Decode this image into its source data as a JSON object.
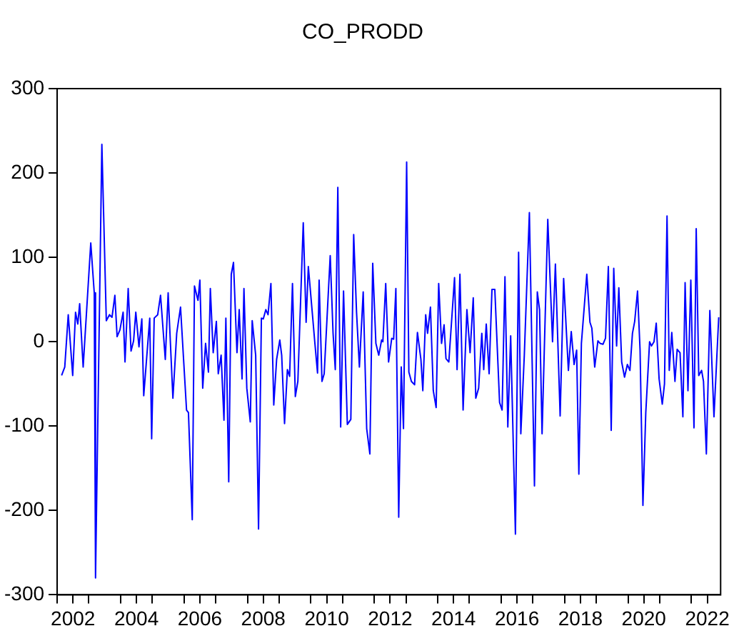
{
  "chart_data": {
    "type": "line",
    "title": "CO_PRODD",
    "color": "#0000ff",
    "marker": "none",
    "x": [
      2002.14,
      2002.24,
      2002.35,
      2002.49,
      2002.58,
      2002.65,
      2002.71,
      2002.82,
      2003.06,
      2003.17,
      2003.21,
      2003.41,
      2003.55,
      2003.65,
      2003.73,
      2003.82,
      2003.89,
      2003.98,
      2004.08,
      2004.14,
      2004.24,
      2004.33,
      2004.41,
      2004.48,
      2004.58,
      2004.67,
      2004.73,
      2004.92,
      2004.98,
      2005.06,
      2005.17,
      2005.26,
      2005.41,
      2005.5,
      2005.65,
      2005.77,
      2005.89,
      2006.08,
      2006.14,
      2006.26,
      2006.33,
      2006.44,
      2006.5,
      2006.59,
      2006.68,
      2006.77,
      2006.83,
      2006.92,
      2007.02,
      2007.08,
      2007.17,
      2007.26,
      2007.32,
      2007.41,
      2007.49,
      2007.56,
      2007.67,
      2007.74,
      2007.83,
      2007.89,
      2007.98,
      2008.09,
      2008.15,
      2008.26,
      2008.35,
      2008.44,
      2008.5,
      2008.58,
      2008.65,
      2008.74,
      2008.83,
      2008.92,
      2009.02,
      2009.08,
      2009.17,
      2009.26,
      2009.33,
      2009.42,
      2009.51,
      2009.59,
      2009.76,
      2009.85,
      2009.92,
      2010.05,
      2010.12,
      2010.21,
      2010.26,
      2010.35,
      2010.42,
      2010.61,
      2010.7,
      2010.77,
      2010.85,
      2010.94,
      2011.03,
      2011.15,
      2011.26,
      2011.35,
      2011.44,
      2011.53,
      2011.65,
      2011.76,
      2011.86,
      2011.95,
      2012.05,
      2012.14,
      2012.23,
      2012.27,
      2012.36,
      2012.45,
      2012.55,
      2012.61,
      2012.68,
      2012.77,
      2012.85,
      2012.92,
      2013.02,
      2013.09,
      2013.17,
      2013.27,
      2013.36,
      2013.47,
      2013.53,
      2013.62,
      2013.68,
      2013.77,
      2013.86,
      2013.95,
      2014.03,
      2014.12,
      2014.2,
      2014.26,
      2014.35,
      2014.53,
      2014.61,
      2014.7,
      2014.8,
      2014.92,
      2015.02,
      2015.12,
      2015.2,
      2015.29,
      2015.39,
      2015.45,
      2015.53,
      2015.62,
      2015.71,
      2015.8,
      2015.95,
      2016.03,
      2016.12,
      2016.21,
      2016.3,
      2016.45,
      2016.55,
      2016.62,
      2016.73,
      2016.89,
      2017.05,
      2017.14,
      2017.21,
      2017.29,
      2017.47,
      2017.62,
      2017.71,
      2017.86,
      2017.97,
      2018.12,
      2018.21,
      2018.3,
      2018.38,
      2018.45,
      2018.53,
      2018.7,
      2018.8,
      2018.86,
      2018.95,
      2019.05,
      2019.12,
      2019.21,
      2019.29,
      2019.38,
      2019.47,
      2019.55,
      2019.64,
      2019.71,
      2019.8,
      2019.89,
      2019.98,
      2020.06,
      2020.14,
      2020.21,
      2020.3,
      2020.38,
      2020.47,
      2020.56,
      2020.68,
      2020.74,
      2020.82,
      2020.89,
      2020.98,
      2021.08,
      2021.15,
      2021.23,
      2021.3,
      2021.38,
      2021.48,
      2021.55,
      2021.64,
      2021.73,
      2021.8,
      2021.89,
      2021.98,
      2022.08,
      2022.15,
      2022.23,
      2022.32,
      2022.38,
      2022.47,
      2022.58,
      2022.71,
      2022.86
    ],
    "values": [
      -40,
      -30,
      32,
      -40,
      35,
      21,
      45,
      -30,
      117,
      58,
      -280,
      234,
      25,
      32,
      29,
      55,
      6,
      14,
      35,
      -24,
      63,
      -11,
      1,
      35,
      -6,
      27,
      -64,
      28,
      -115,
      28,
      32,
      55,
      -21,
      58,
      -67,
      10,
      41,
      -81,
      -84,
      -211,
      66,
      49,
      73,
      -55,
      -2,
      -36,
      63,
      -13,
      24,
      -38,
      -16,
      -93,
      28,
      -166,
      80,
      94,
      -13,
      38,
      -44,
      63,
      -55,
      -95,
      25,
      -16,
      -222,
      28,
      27,
      38,
      32,
      69,
      -75,
      -21,
      2,
      -16,
      -97,
      -33,
      -41,
      69,
      -65,
      -47,
      141,
      23,
      89,
      32,
      1,
      -37,
      73,
      -47,
      -38,
      102,
      10,
      -33,
      183,
      -101,
      60,
      -98,
      -92,
      127,
      35,
      -30,
      59,
      -103,
      -133,
      93,
      -2,
      -16,
      2,
      0,
      69,
      -24,
      4,
      3,
      63,
      -208,
      -30,
      -103,
      213,
      -36,
      -47,
      -51,
      11,
      -21,
      -58,
      32,
      10,
      41,
      -58,
      -78,
      69,
      -2,
      20,
      -20,
      -24,
      76,
      -33,
      80,
      -81,
      38,
      -13,
      52,
      -67,
      -55,
      10,
      -33,
      21,
      -38,
      62,
      62,
      -72,
      -81,
      77,
      -101,
      7,
      -228,
      106,
      -109,
      -16,
      153,
      -171,
      59,
      38,
      -109,
      145,
      0,
      92,
      -88,
      75,
      -34,
      12,
      -27,
      -10,
      -157,
      -2,
      80,
      23,
      16,
      -30,
      1,
      -2,
      -3,
      4,
      89,
      -105,
      87,
      -5,
      64,
      -24,
      -42,
      -27,
      -34,
      10,
      24,
      60,
      -10,
      -194,
      -84,
      0,
      -5,
      0,
      22,
      -44,
      -74,
      -50,
      149,
      -34,
      11,
      -47,
      -9,
      -13,
      -89,
      70,
      -58,
      73,
      -102,
      134,
      -40,
      -34,
      -47,
      -133,
      37,
      -89,
      29
    ],
    "xlim": [
      2002,
      2022.92
    ],
    "xticks": [
      {
        "value": 2002,
        "label": null
      },
      {
        "value": 2002.5,
        "label": "2002"
      },
      {
        "value": 2003,
        "label": null
      },
      {
        "value": 2004,
        "label": null
      },
      {
        "value": 2004.5,
        "label": "2004"
      },
      {
        "value": 2005,
        "label": null
      },
      {
        "value": 2006,
        "label": null
      },
      {
        "value": 2006.5,
        "label": "2006"
      },
      {
        "value": 2007,
        "label": null
      },
      {
        "value": 2008,
        "label": null
      },
      {
        "value": 2008.5,
        "label": "2008"
      },
      {
        "value": 2009,
        "label": null
      },
      {
        "value": 2010,
        "label": null
      },
      {
        "value": 2010.5,
        "label": "2010"
      },
      {
        "value": 2011,
        "label": null
      },
      {
        "value": 2012,
        "label": null
      },
      {
        "value": 2012.5,
        "label": "2012"
      },
      {
        "value": 2013,
        "label": null
      },
      {
        "value": 2014,
        "label": null
      },
      {
        "value": 2014.5,
        "label": "2014"
      },
      {
        "value": 2015,
        "label": null
      },
      {
        "value": 2016,
        "label": null
      },
      {
        "value": 2016.5,
        "label": "2016"
      },
      {
        "value": 2017,
        "label": null
      },
      {
        "value": 2018,
        "label": null
      },
      {
        "value": 2018.5,
        "label": "2018"
      },
      {
        "value": 2019,
        "label": null
      },
      {
        "value": 2020,
        "label": null
      },
      {
        "value": 2020.5,
        "label": "2020"
      },
      {
        "value": 2021,
        "label": null
      },
      {
        "value": 2022,
        "label": null
      },
      {
        "value": 2022.5,
        "label": "2022"
      }
    ],
    "ylim": [
      -300,
      300
    ],
    "yticks": [
      -300,
      -200,
      -100,
      0,
      100,
      200,
      300
    ]
  }
}
